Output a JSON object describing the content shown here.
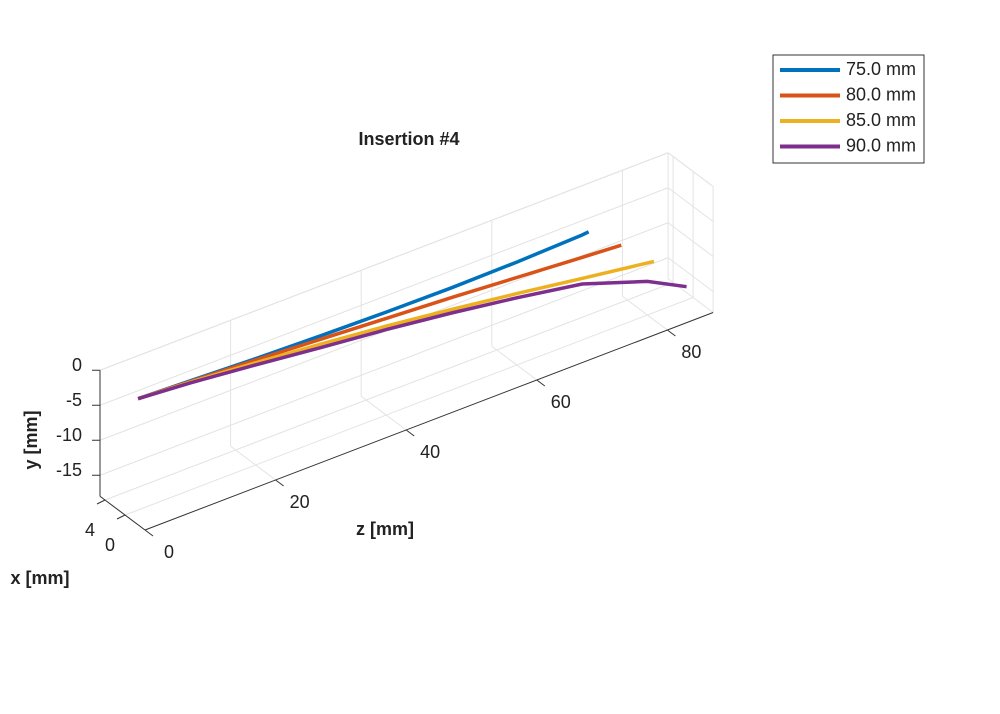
{
  "chart_data": {
    "type": "line3d",
    "title": "Insertion #4",
    "xlabel": "x [mm]",
    "ylabel": "y [mm]",
    "zlabel": "z [mm]",
    "xlim": [
      -4,
      5
    ],
    "ylim": [
      -18,
      0
    ],
    "zlim": [
      0,
      87
    ],
    "xticks": [
      0,
      4
    ],
    "yticks": [
      -15,
      -10,
      -5,
      0
    ],
    "zticks": [
      0,
      20,
      40,
      60,
      80
    ],
    "grid": true,
    "legend_position": "northeast",
    "series": [
      {
        "name": "75.0 mm",
        "color": "#0072BD",
        "z": [
          2,
          10,
          20,
          30,
          40,
          50,
          60,
          70,
          71
        ],
        "values": [
          -2.1,
          -2.4,
          -2.8,
          -3.1,
          -3.3,
          -3.4,
          -3.3,
          -3.0,
          -2.9
        ]
      },
      {
        "name": "80.0 mm",
        "color": "#D95319",
        "z": [
          2,
          10,
          20,
          30,
          40,
          50,
          60,
          70,
          76
        ],
        "values": [
          -2.1,
          -2.5,
          -3.0,
          -3.6,
          -4.2,
          -4.8,
          -5.5,
          -6.2,
          -6.6
        ]
      },
      {
        "name": "85.0 mm",
        "color": "#EDB120",
        "z": [
          2,
          10,
          20,
          30,
          40,
          50,
          60,
          70,
          81
        ],
        "values": [
          -2.1,
          -2.6,
          -3.4,
          -4.3,
          -5.3,
          -6.5,
          -7.8,
          -9.2,
          -10.7
        ]
      },
      {
        "name": "90.0 mm",
        "color": "#7E2F8E",
        "z": [
          2,
          10,
          20,
          30,
          40,
          50,
          60,
          70,
          80,
          86
        ],
        "values": [
          -2.1,
          -2.7,
          -3.7,
          -4.8,
          -5.8,
          -7.0,
          -8.4,
          -10.0,
          -13.2,
          -16.1
        ]
      }
    ]
  }
}
